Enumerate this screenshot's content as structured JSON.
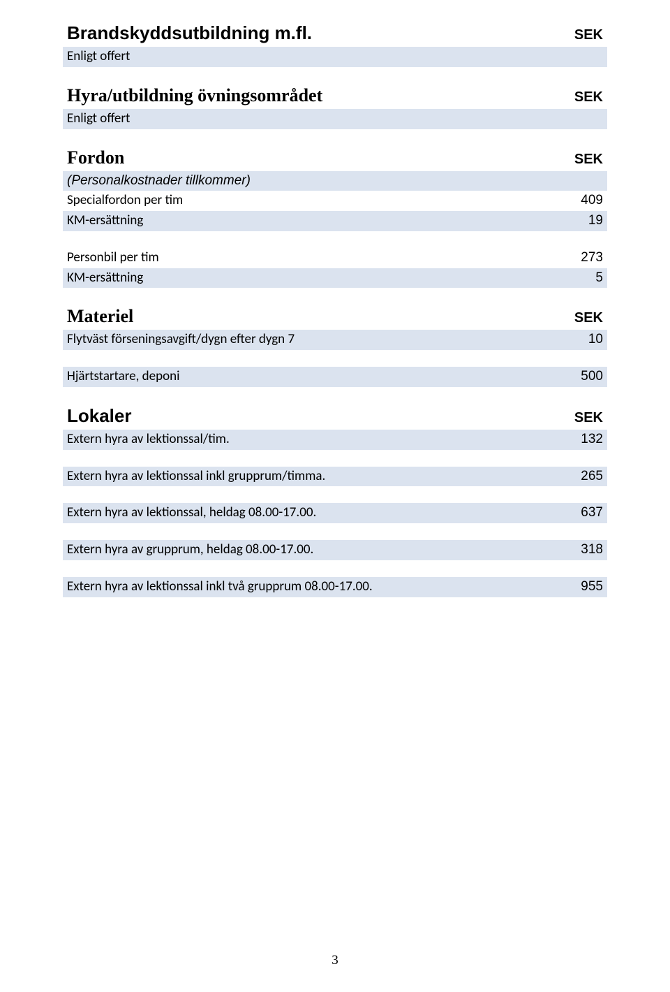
{
  "colors": {
    "row_shade": "#dbe3ef",
    "background": "#ffffff",
    "text": "#000000"
  },
  "page_number": "3",
  "currency_label": "SEK",
  "sections": {
    "brand": {
      "title": "Brandskyddsutbildning  m.fl.",
      "note": "Enligt offert"
    },
    "hyra_utb": {
      "title": "Hyra/utbildning övningsområdet",
      "note": "Enligt offert"
    },
    "fordon": {
      "title": "Fordon",
      "subnote": "(Personalkostnader tillkommer)",
      "rows": [
        {
          "label": "Specialfordon per tim",
          "value": "409"
        },
        {
          "label": "KM-ersättning",
          "value": "19"
        }
      ],
      "rows2": [
        {
          "label": "Personbil per tim",
          "value": "273"
        },
        {
          "label": "KM-ersättning",
          "value": "5"
        }
      ]
    },
    "materiel": {
      "title": "Materiel",
      "rows": [
        {
          "label": "Flytväst förseningsavgift/dygn efter dygn 7",
          "value": "10"
        }
      ],
      "rows2": [
        {
          "label": "Hjärtstartare, deponi",
          "value": "500"
        }
      ]
    },
    "lokaler": {
      "title": "Lokaler",
      "rows": [
        {
          "label": "Extern hyra av lektionssal/tim.",
          "value": "132"
        },
        {
          "label": "Extern hyra av lektionssal inkl grupprum/timma.",
          "value": "265"
        },
        {
          "label": "Extern hyra av lektionssal, heldag 08.00-17.00.",
          "value": "637"
        },
        {
          "label": "Extern hyra av grupprum, heldag 08.00-17.00.",
          "value": "318"
        },
        {
          "label": "Extern hyra av lektionssal inkl två grupprum 08.00-17.00.",
          "value": "955"
        }
      ]
    }
  }
}
